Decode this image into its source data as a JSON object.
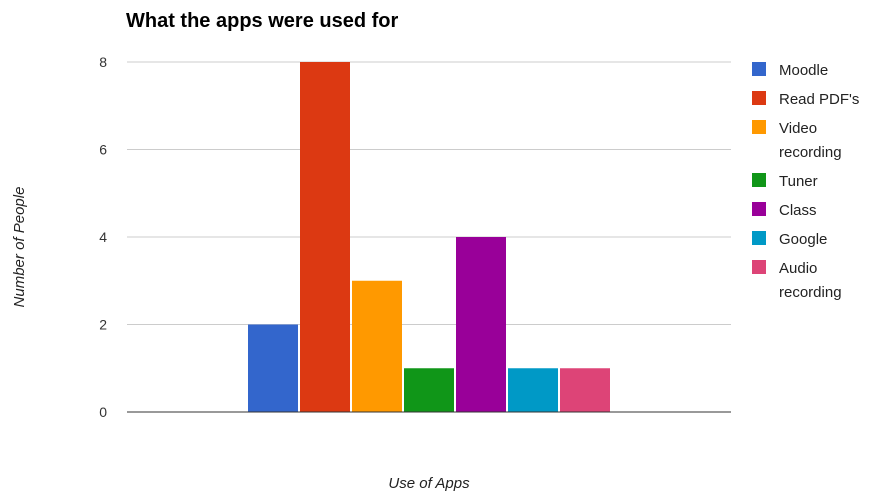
{
  "chart_data": {
    "type": "bar",
    "title": "What the apps were used for",
    "xlabel": "Use of Apps",
    "ylabel": "Number of People",
    "ylim": [
      0,
      8
    ],
    "yticks": [
      0,
      2,
      4,
      6,
      8
    ],
    "grid": true,
    "legend_position": "right",
    "series": [
      {
        "name": "Moodle",
        "value": 2,
        "color": "#3366cc"
      },
      {
        "name": "Read PDF's",
        "value": 8,
        "color": "#dc3912"
      },
      {
        "name": "Video recording",
        "value": 3,
        "color": "#ff9900"
      },
      {
        "name": "Tuner",
        "value": 1,
        "color": "#109618"
      },
      {
        "name": "Class",
        "value": 4,
        "color": "#990099"
      },
      {
        "name": "Google",
        "value": 1,
        "color": "#0099c6"
      },
      {
        "name": "Audio recording",
        "value": 1,
        "color": "#dd4477"
      }
    ]
  }
}
